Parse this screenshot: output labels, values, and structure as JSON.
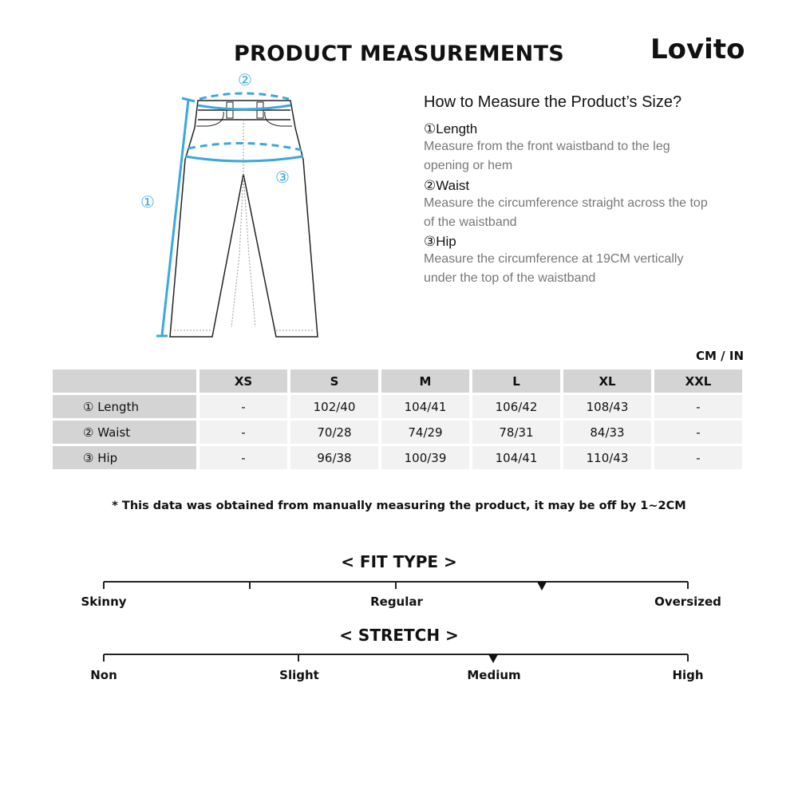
{
  "header": {
    "title": "PRODUCT MEASUREMENTS",
    "brand": "Lovito"
  },
  "diagram": {
    "markers": [
      "①",
      "②",
      "③"
    ],
    "accent_color": "#3aa8dc"
  },
  "guide": {
    "heading": "How to Measure the Product’s Size?",
    "items": [
      {
        "name": "①Length",
        "desc": "Measure from the front waistband to the leg opening or hem"
      },
      {
        "name": "②Waist",
        "desc": "Measure the circumference straight across the top of the waistband"
      },
      {
        "name": "③Hip",
        "desc": "Measure the circumference at 19CM vertically under the top of the waistband"
      }
    ]
  },
  "table": {
    "unit": "CM / IN",
    "columns": [
      "XS",
      "S",
      "M",
      "L",
      "XL",
      "XXL"
    ],
    "rows": [
      {
        "label": "① Length",
        "values": [
          "-",
          "102/40",
          "104/41",
          "106/42",
          "108/43",
          "-"
        ]
      },
      {
        "label": "② Waist",
        "values": [
          "-",
          "70/28",
          "74/29",
          "78/31",
          "84/33",
          "-"
        ]
      },
      {
        "label": "③ Hip",
        "values": [
          "-",
          "96/38",
          "100/39",
          "104/41",
          "110/43",
          "-"
        ]
      }
    ]
  },
  "note": "* This data was obtained from manually measuring the product, it may be off by 1~2CM",
  "fit_type": {
    "heading": "< FIT TYPE >",
    "labels": [
      "Skinny",
      "Regular",
      "Oversized"
    ],
    "level": 0.75
  },
  "stretch": {
    "heading": "< STRETCH >",
    "labels": [
      "Non",
      "Slight",
      "Medium",
      "High"
    ],
    "level": 0.6667
  }
}
